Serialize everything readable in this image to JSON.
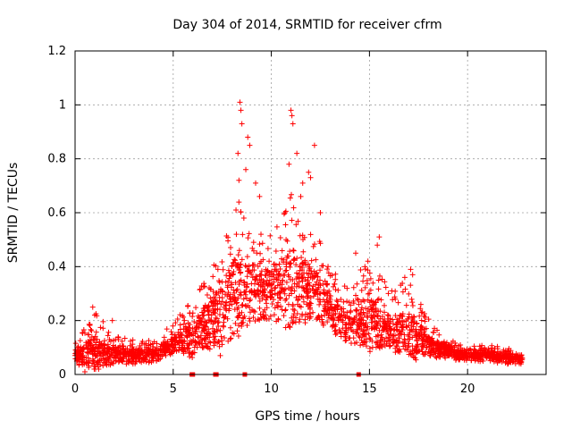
{
  "chart_data": {
    "type": "scatter",
    "title": "Day 304 of 2014, SRMTID for receiver cfrm",
    "xlabel": "GPS time / hours",
    "ylabel": "SRMTID / TECUs",
    "xlim": [
      0,
      24
    ],
    "ylim": [
      0,
      1.2
    ],
    "x_ticks": [
      0,
      5,
      10,
      15,
      20
    ],
    "x_tick_labels": [
      "0",
      "5",
      "10",
      "15",
      "20"
    ],
    "y_ticks": [
      0,
      0.2,
      0.4,
      0.6,
      0.8,
      1.0,
      1.2
    ],
    "y_tick_labels": [
      "0",
      "0.2",
      "0.4",
      "0.6",
      "0.8",
      "1",
      "1.2"
    ],
    "grid": true,
    "marker": "plus",
    "color": "#ff0000",
    "envelope": {
      "description": "approximate median / upper spread of the dense point cloud per hour",
      "hours": [
        0,
        1,
        2,
        3,
        4,
        5,
        6,
        7,
        8,
        9,
        10,
        11,
        12,
        13,
        14,
        15,
        16,
        17,
        18,
        19,
        20,
        21,
        22,
        22.8
      ],
      "median": [
        0.08,
        0.09,
        0.08,
        0.08,
        0.08,
        0.12,
        0.14,
        0.2,
        0.28,
        0.32,
        0.3,
        0.33,
        0.32,
        0.25,
        0.18,
        0.2,
        0.17,
        0.15,
        0.12,
        0.09,
        0.08,
        0.08,
        0.07,
        0.06
      ],
      "upper": [
        0.13,
        0.22,
        0.15,
        0.13,
        0.13,
        0.19,
        0.28,
        0.38,
        0.62,
        0.55,
        0.5,
        0.65,
        0.55,
        0.4,
        0.3,
        0.42,
        0.3,
        0.35,
        0.2,
        0.13,
        0.11,
        0.11,
        0.1,
        0.09
      ]
    },
    "outliers": [
      {
        "x": 8.4,
        "y": 1.01
      },
      {
        "x": 8.45,
        "y": 0.98
      },
      {
        "x": 8.5,
        "y": 0.93
      },
      {
        "x": 8.3,
        "y": 0.82
      },
      {
        "x": 8.8,
        "y": 0.88
      },
      {
        "x": 8.9,
        "y": 0.85
      },
      {
        "x": 8.35,
        "y": 0.72
      },
      {
        "x": 8.7,
        "y": 0.76
      },
      {
        "x": 9.2,
        "y": 0.71
      },
      {
        "x": 8.2,
        "y": 0.61
      },
      {
        "x": 9.4,
        "y": 0.66
      },
      {
        "x": 8.6,
        "y": 0.58
      },
      {
        "x": 11.0,
        "y": 0.98
      },
      {
        "x": 11.05,
        "y": 0.96
      },
      {
        "x": 11.1,
        "y": 0.93
      },
      {
        "x": 11.3,
        "y": 0.82
      },
      {
        "x": 10.9,
        "y": 0.78
      },
      {
        "x": 12.2,
        "y": 0.85
      },
      {
        "x": 11.9,
        "y": 0.75
      },
      {
        "x": 11.6,
        "y": 0.71
      },
      {
        "x": 12.0,
        "y": 0.73
      },
      {
        "x": 11.5,
        "y": 0.66
      },
      {
        "x": 12.5,
        "y": 0.6
      },
      {
        "x": 10.7,
        "y": 0.6
      },
      {
        "x": 15.5,
        "y": 0.51
      },
      {
        "x": 15.4,
        "y": 0.48
      },
      {
        "x": 14.3,
        "y": 0.45
      },
      {
        "x": 17.1,
        "y": 0.39
      },
      {
        "x": 17.2,
        "y": 0.37
      },
      {
        "x": 16.8,
        "y": 0.36
      },
      {
        "x": 0.9,
        "y": 0.25
      },
      {
        "x": 1.0,
        "y": 0.22
      },
      {
        "x": 1.9,
        "y": 0.2
      },
      {
        "x": 0.5,
        "y": 0.01
      },
      {
        "x": 1.2,
        "y": 0.02
      },
      {
        "x": 7.4,
        "y": 0.07
      }
    ],
    "zero_points": [
      {
        "x": 5.95,
        "y": 0.0
      },
      {
        "x": 6.0,
        "y": 0.0
      },
      {
        "x": 7.15,
        "y": 0.0
      },
      {
        "x": 7.2,
        "y": 0.0
      },
      {
        "x": 8.65,
        "y": 0.0
      },
      {
        "x": 14.45,
        "y": 0.0
      }
    ]
  }
}
